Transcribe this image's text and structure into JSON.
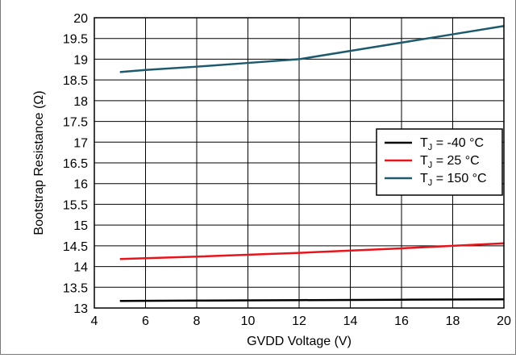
{
  "chart_data": {
    "type": "line",
    "xlabel": "GVDD Voltage (V)",
    "ylabel": "Bootstrap Resistance (Ω)",
    "xlim": [
      4,
      20
    ],
    "ylim": [
      13,
      20
    ],
    "x_ticks": [
      4,
      6,
      8,
      10,
      12,
      14,
      16,
      18,
      20
    ],
    "y_ticks": [
      13,
      13.5,
      14,
      14.5,
      15,
      15.5,
      16,
      16.5,
      17,
      17.5,
      18,
      18.5,
      19,
      19.5,
      20
    ],
    "grid": true,
    "legend_position": "right",
    "series": [
      {
        "name_main": "T",
        "name_sub": "J",
        "name_rest": " = -40 °C",
        "color": "#000000",
        "x": [
          5,
          8,
          12,
          16,
          20
        ],
        "y": [
          13.17,
          13.18,
          13.19,
          13.2,
          13.21
        ]
      },
      {
        "name_main": "T",
        "name_sub": "J",
        "name_rest": " = 25 °C",
        "color": "#e8141b",
        "x": [
          5,
          8,
          12,
          16,
          20
        ],
        "y": [
          14.18,
          14.24,
          14.33,
          14.44,
          14.56
        ]
      },
      {
        "name_main": "T",
        "name_sub": "J",
        "name_rest": " = 150 °C",
        "color": "#1e5a6e",
        "x": [
          5,
          6,
          8,
          10,
          12,
          14,
          16,
          18,
          20
        ],
        "y": [
          18.69,
          18.74,
          18.82,
          18.91,
          19.0,
          19.2,
          19.4,
          19.6,
          19.8
        ]
      }
    ]
  }
}
